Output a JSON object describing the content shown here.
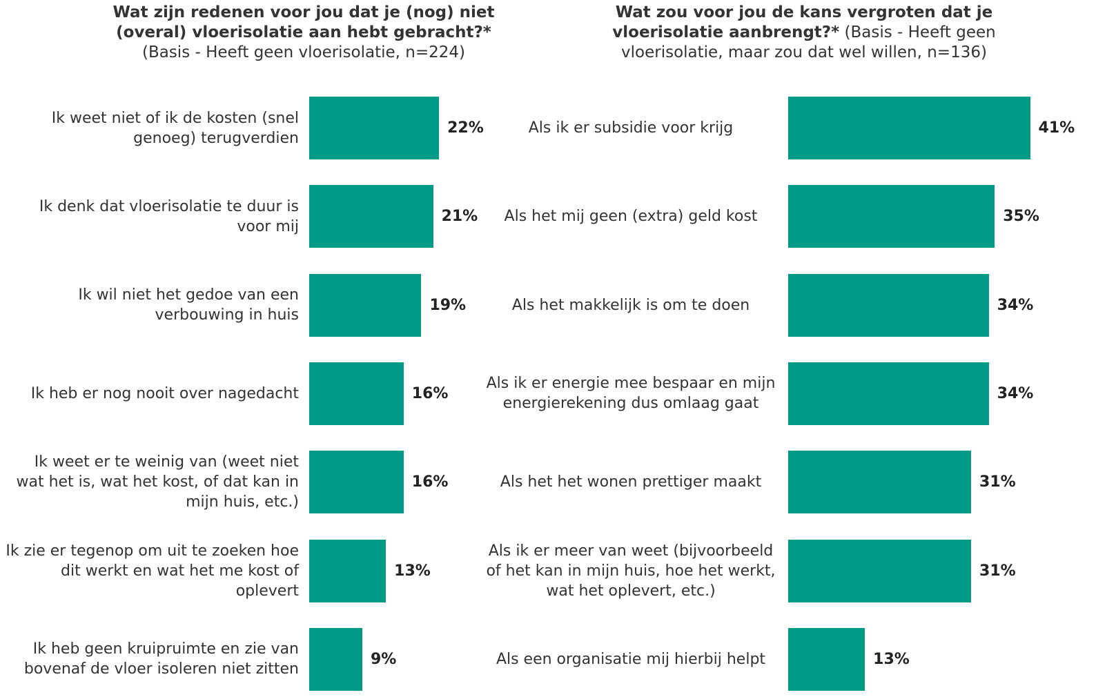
{
  "chart_data": [
    {
      "type": "bar",
      "orientation": "horizontal",
      "color": "#009a87",
      "title": "Wat zijn redenen voor jou dat je (nog) niet (overal) vloerisolatie aan hebt gebracht?*",
      "subtitle": "(Basis - Heeft geen vloerisolatie, n=224)",
      "categories": [
        "Ik weet niet of ik de kosten (snel genoeg) terugverdien",
        "Ik denk dat vloerisolatie te duur is voor mij",
        "Ik wil niet het gedoe van een verbouwing in huis",
        "Ik heb er nog nooit over nagedacht",
        "Ik weet er te weinig van (weet niet wat het is, wat het kost, of dat kan in mijn huis, etc.)",
        "Ik zie er tegenop om uit te zoeken hoe dit werkt en wat het me kost of oplevert",
        "Ik heb geen kruipruimte en zie van bovenaf de vloer isoleren niet zitten"
      ],
      "values": [
        22,
        21,
        19,
        16,
        16,
        13,
        9
      ],
      "value_labels": [
        "22%",
        "21%",
        "19%",
        "16%",
        "16%",
        "13%",
        "9%"
      ]
    },
    {
      "type": "bar",
      "orientation": "horizontal",
      "color": "#009a87",
      "title": "Wat zou voor jou de kans vergroten dat je vloerisolatie aanbrengt?*",
      "subtitle": "(Basis - Heeft geen vloerisolatie, maar zou dat wel willen, n=136)",
      "categories": [
        "Als ik er subsidie voor krijg",
        "Als het mij geen (extra) geld kost",
        "Als het makkelijk is om te doen",
        "Als ik er energie mee bespaar en mijn energierekening dus omlaag gaat",
        "Als het het wonen prettiger maakt",
        "Als ik er meer van weet (bijvoorbeeld of het kan in mijn huis, hoe het werkt, wat het oplevert, etc.)",
        "Als een organisatie mij hierbij helpt"
      ],
      "values": [
        41,
        35,
        34,
        34,
        31,
        31,
        13
      ],
      "value_labels": [
        "41%",
        "35%",
        "34%",
        "34%",
        "31%",
        "31%",
        "13%"
      ]
    }
  ]
}
